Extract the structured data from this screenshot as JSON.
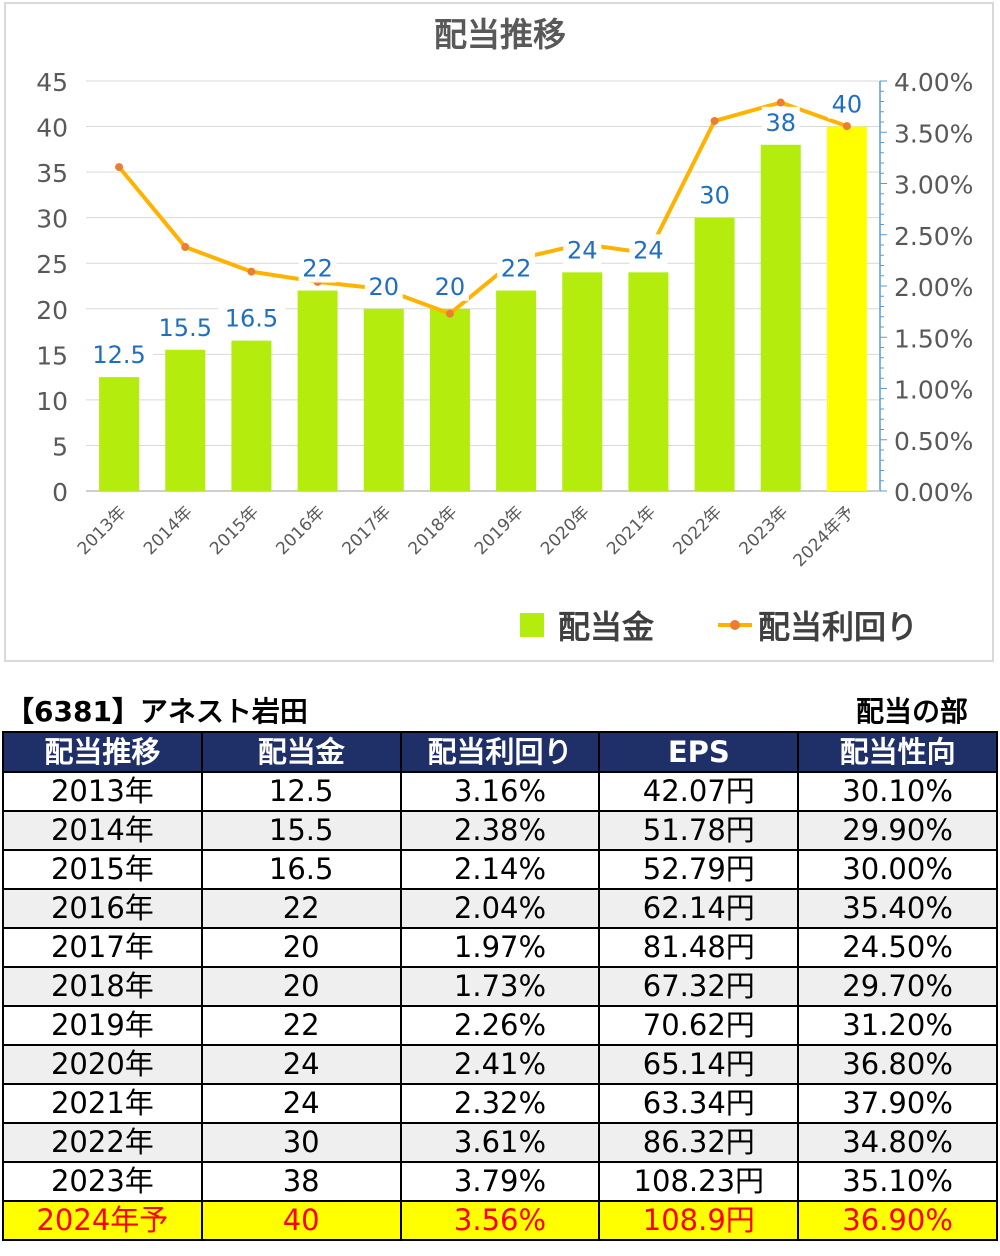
{
  "chart_data": {
    "type": "bar",
    "title": "配当推移",
    "categories": [
      "2013年",
      "2014年",
      "2015年",
      "2016年",
      "2017年",
      "2018年",
      "2019年",
      "2020年",
      "2021年",
      "2022年",
      "2023年",
      "2024年予"
    ],
    "series": [
      {
        "name": "配当金",
        "type": "bar",
        "axis": "left",
        "values": [
          12.5,
          15.5,
          16.5,
          22,
          20,
          20,
          22,
          24,
          24,
          30,
          38,
          40
        ],
        "labels": [
          "12.5",
          "15.5",
          "16.5",
          "22",
          "20",
          "20",
          "22",
          "24",
          "24",
          "30",
          "38",
          "40"
        ]
      },
      {
        "name": "配当利回り",
        "type": "line",
        "axis": "right",
        "values": [
          3.16,
          2.38,
          2.14,
          2.04,
          1.97,
          1.73,
          2.26,
          2.41,
          2.32,
          3.61,
          3.79,
          3.56
        ]
      }
    ],
    "ylim": [
      0,
      45
    ],
    "yticks": [
      "0",
      "5",
      "10",
      "15",
      "20",
      "25",
      "30",
      "35",
      "40",
      "45"
    ],
    "y2lim": [
      0,
      4
    ],
    "y2ticks": [
      "0.00%",
      "0.50%",
      "1.00%",
      "1.50%",
      "2.00%",
      "2.50%",
      "3.00%",
      "3.50%",
      "4.00%"
    ],
    "legend_position": "bottom-right",
    "grid": true,
    "colors": {
      "bar": "#b4ec0e",
      "bar_highlight": "#ffff00",
      "line": "#ffb300",
      "marker": "#ed7d31",
      "label": "#1f6fc0"
    }
  },
  "table": {
    "company": "【6381】アネスト岩田",
    "section": "配当の部",
    "headers": [
      "配当推移",
      "配当金",
      "配当利回り",
      "EPS",
      "配当性向"
    ],
    "rows": [
      [
        "2013年",
        "12.5",
        "3.16%",
        "42.07円",
        "30.10%"
      ],
      [
        "2014年",
        "15.5",
        "2.38%",
        "51.78円",
        "29.90%"
      ],
      [
        "2015年",
        "16.5",
        "2.14%",
        "52.79円",
        "30.00%"
      ],
      [
        "2016年",
        "22",
        "2.04%",
        "62.14円",
        "35.40%"
      ],
      [
        "2017年",
        "20",
        "1.97%",
        "81.48円",
        "24.50%"
      ],
      [
        "2018年",
        "20",
        "1.73%",
        "67.32円",
        "29.70%"
      ],
      [
        "2019年",
        "22",
        "2.26%",
        "70.62円",
        "31.20%"
      ],
      [
        "2020年",
        "24",
        "2.41%",
        "65.14円",
        "36.80%"
      ],
      [
        "2021年",
        "24",
        "2.32%",
        "63.34円",
        "37.90%"
      ],
      [
        "2022年",
        "30",
        "3.61%",
        "86.32円",
        "34.80%"
      ],
      [
        "2023年",
        "38",
        "3.79%",
        "108.23円",
        "35.10%"
      ],
      [
        "2024年予",
        "40",
        "3.56%",
        "108.9円",
        "36.90%"
      ]
    ]
  }
}
